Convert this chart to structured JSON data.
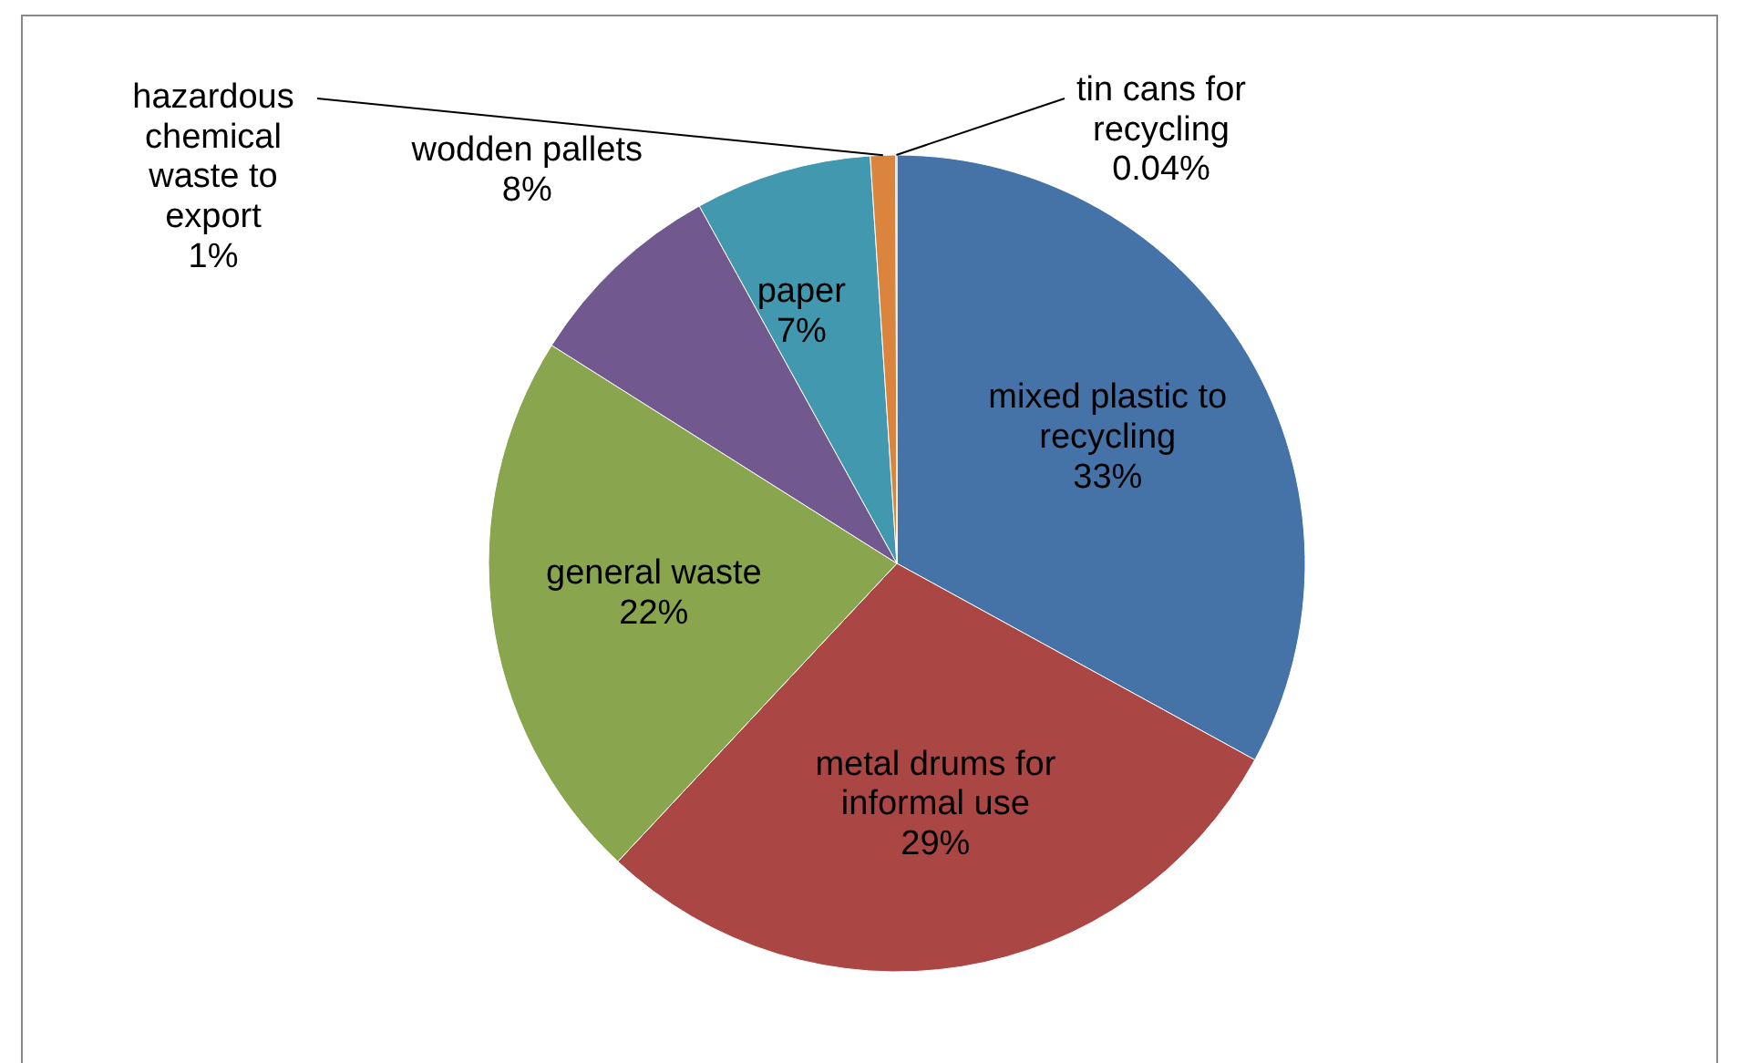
{
  "chart_data": {
    "type": "pie",
    "categories": [
      "mixed plastic to recycling",
      "metal drums for informal use",
      "general waste",
      "wodden pallets",
      "paper",
      "hazardous chemical waste to export",
      "tin cans for recycling"
    ],
    "values": [
      33,
      29,
      22,
      8,
      7,
      1,
      0.04
    ],
    "value_labels": [
      "33%",
      "29%",
      "22%",
      "8%",
      "7%",
      "1%",
      "0.04%"
    ],
    "colors": [
      "#4572a7",
      "#aa4643",
      "#89a54e",
      "#71588f",
      "#4198af",
      "#db843d",
      "#93a9cf"
    ]
  }
}
